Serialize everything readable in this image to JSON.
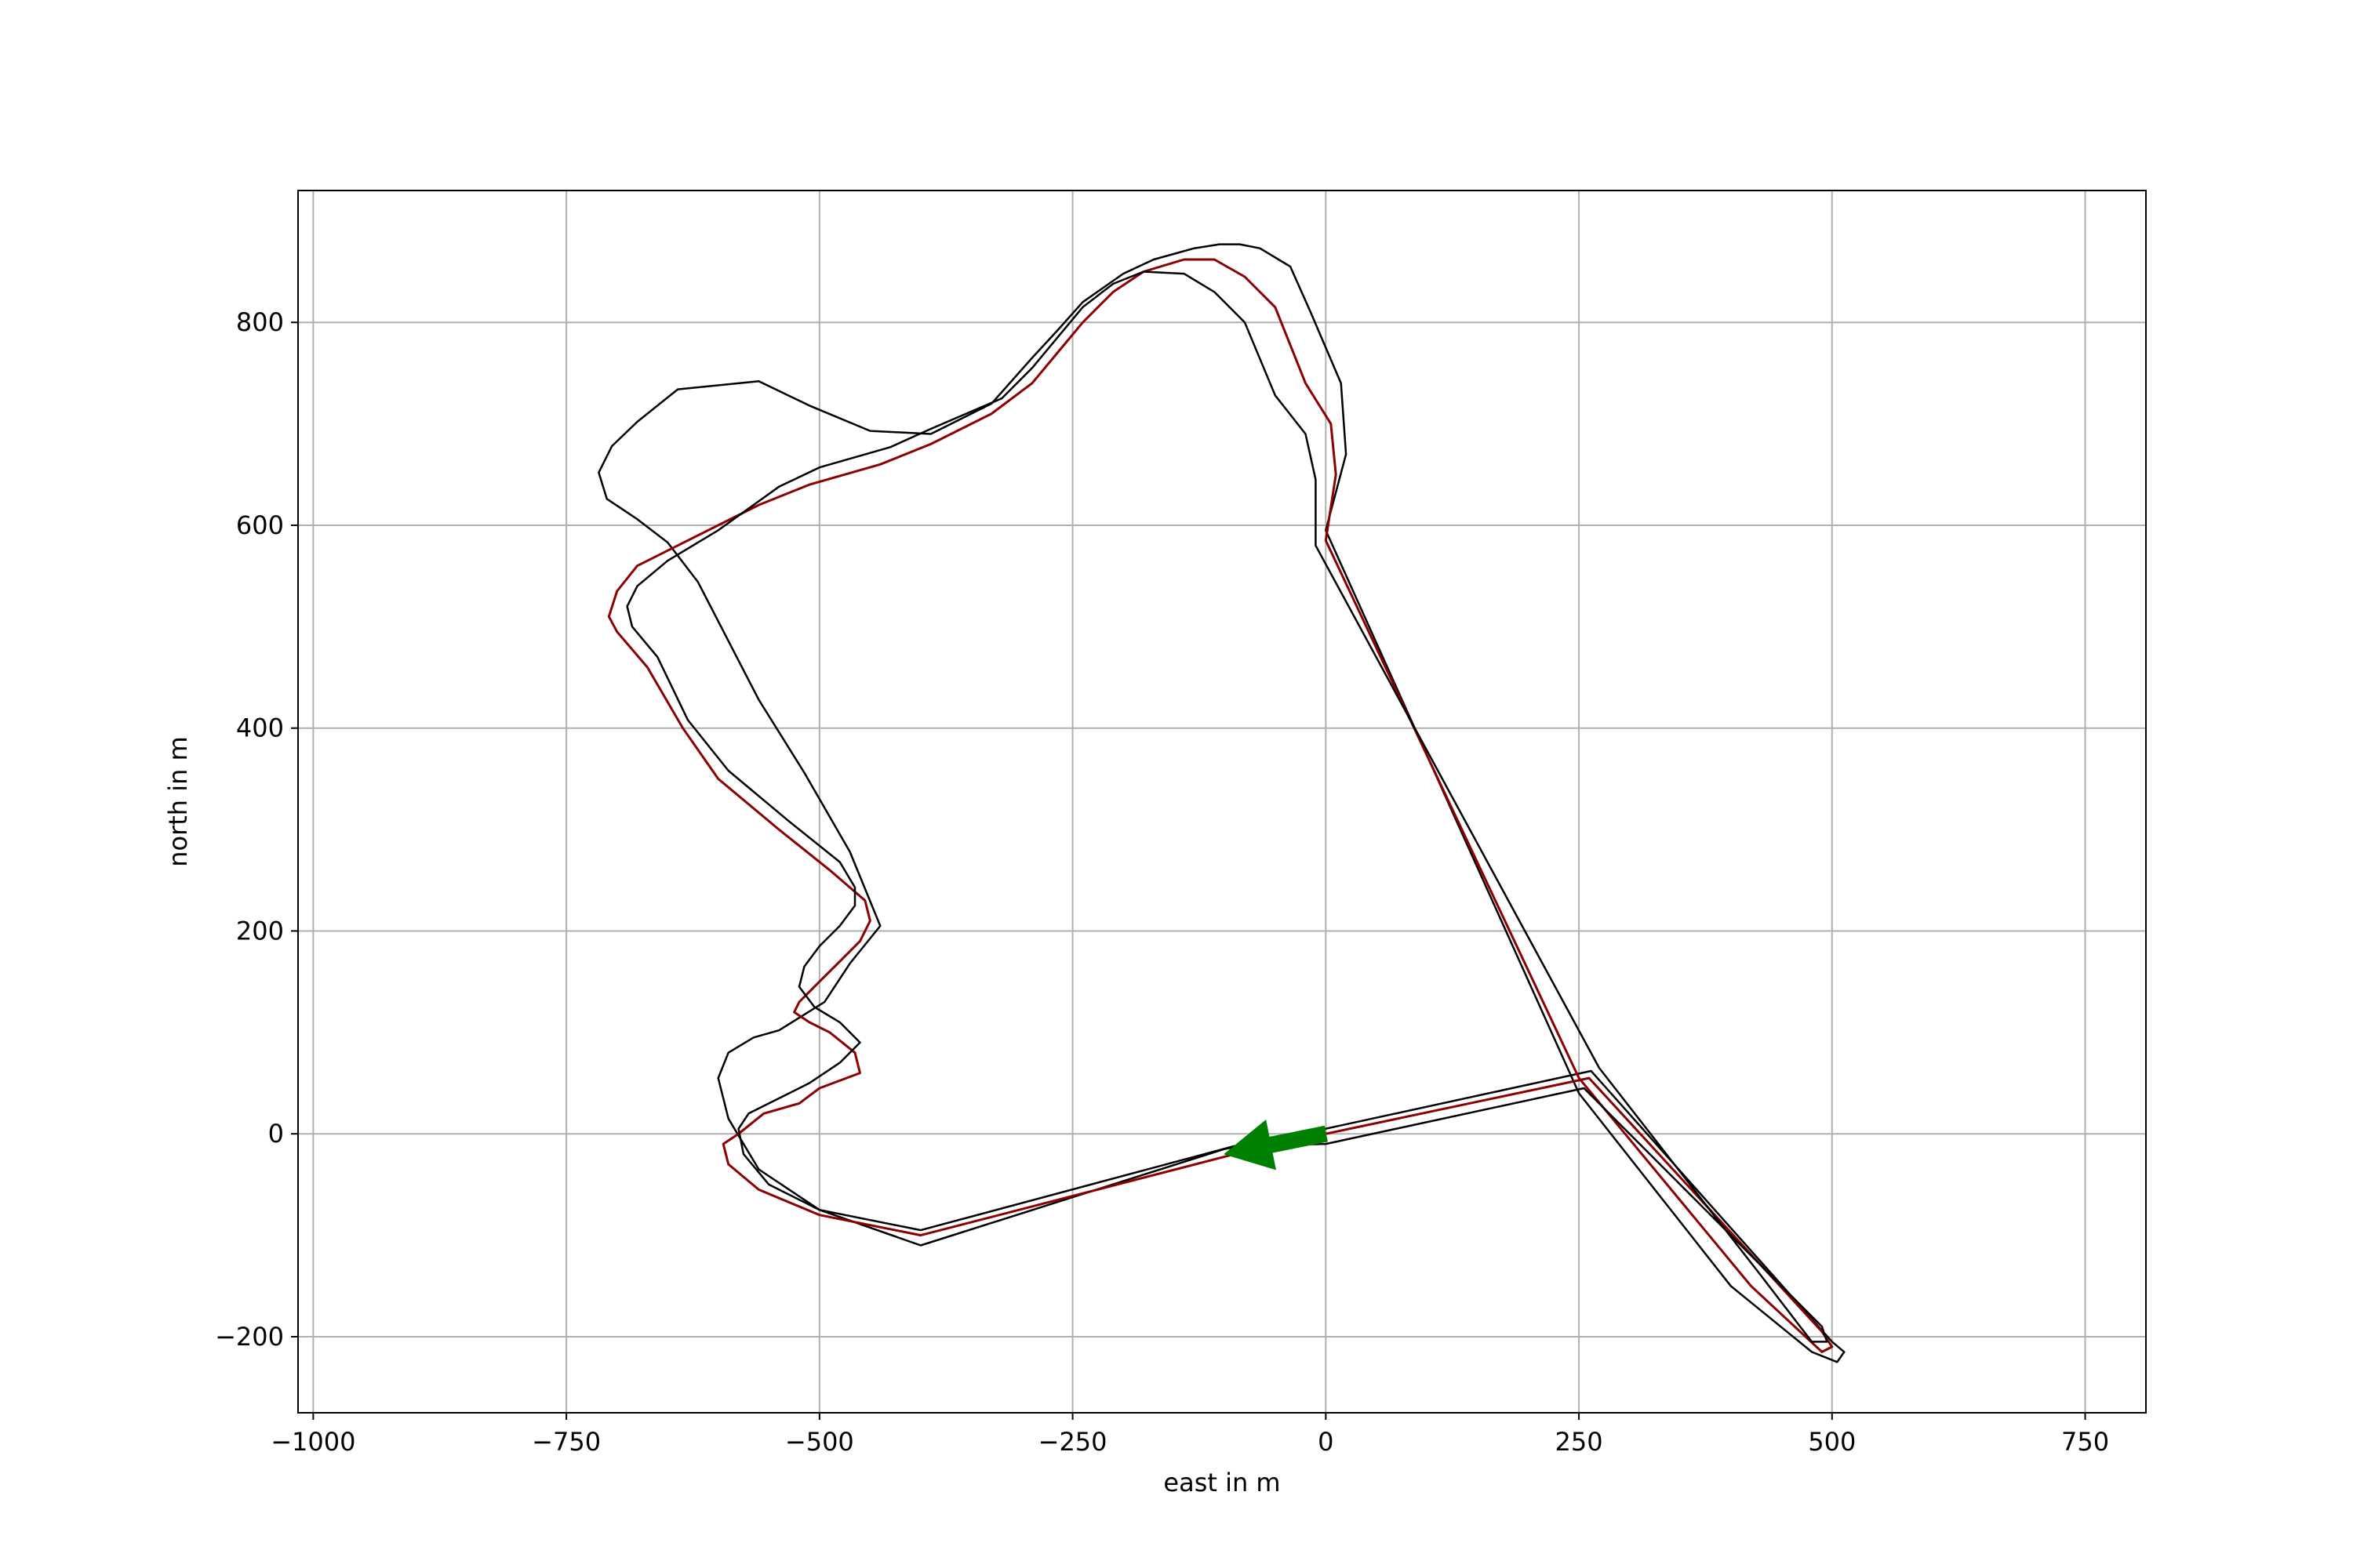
{
  "chart_data": {
    "type": "line",
    "title": "",
    "xlabel": "east in m",
    "ylabel": "north in m",
    "xlim": [
      -1015,
      810
    ],
    "ylim": [
      -275,
      930
    ],
    "grid": true,
    "xticks": [
      -1000,
      -750,
      -500,
      -250,
      0,
      250,
      500,
      750
    ],
    "yticks": [
      -200,
      0,
      200,
      400,
      600,
      800
    ],
    "xtick_labels": [
      "−1000",
      "−750",
      "−500",
      "−250",
      "0",
      "250",
      "500",
      "750"
    ],
    "ytick_labels": [
      "−200",
      "0",
      "200",
      "400",
      "600",
      "800"
    ],
    "colors": {
      "boundary": "#000000",
      "racing_line": "#8b0000",
      "arrow": "#007f00",
      "grid": "#b0b0b0"
    },
    "series": [
      {
        "role": "outer-boundary",
        "x": [
          0,
          262,
          500,
          512,
          505,
          480,
          400,
          250,
          0,
          20,
          15,
          -15,
          -35,
          -65,
          -85,
          -105,
          -130,
          -170,
          -200,
          -240,
          -265,
          -290,
          -330,
          -390,
          -450,
          -510,
          -560,
          -640,
          -680,
          -705,
          -718,
          -710,
          -680,
          -650,
          -620,
          -560,
          -515,
          -470,
          -440,
          -470,
          -495,
          -540,
          -565,
          -590,
          -600,
          -590,
          -560,
          -500,
          -400,
          -100,
          0
        ],
        "y": [
          5,
          62,
          -205,
          -215,
          -225,
          -215,
          -150,
          40,
          595,
          670,
          740,
          810,
          855,
          873,
          877,
          877,
          873,
          862,
          848,
          820,
          792,
          765,
          720,
          690,
          693,
          718,
          742,
          734,
          702,
          678,
          652,
          626,
          606,
          583,
          544,
          428,
          356,
          278,
          205,
          168,
          130,
          102,
          95,
          80,
          55,
          15,
          -35,
          -75,
          -110,
          -15,
          5
        ]
      },
      {
        "role": "racing-line",
        "x": [
          0,
          260,
          490,
          500,
          490,
          420,
          250,
          0,
          10,
          5,
          -20,
          -50,
          -80,
          -110,
          -140,
          -180,
          -210,
          -240,
          -265,
          -290,
          -330,
          -390,
          -440,
          -510,
          -560,
          -640,
          -680,
          -700,
          -708,
          -700,
          -670,
          -635,
          -600,
          -540,
          -490,
          -455,
          -450,
          -460,
          -480,
          -500,
          -520,
          -525,
          -510,
          -490,
          -465,
          -460,
          -500,
          -520,
          -555,
          -580,
          -595,
          -590,
          -560,
          -500,
          -400,
          -90,
          0
        ],
        "y": [
          0,
          55,
          -195,
          -210,
          -215,
          -150,
          55,
          585,
          650,
          700,
          740,
          815,
          845,
          862,
          862,
          850,
          830,
          800,
          770,
          740,
          710,
          680,
          660,
          640,
          620,
          580,
          560,
          535,
          510,
          495,
          460,
          400,
          350,
          300,
          260,
          230,
          210,
          190,
          170,
          150,
          130,
          120,
          110,
          100,
          80,
          60,
          45,
          30,
          20,
          0,
          -10,
          -30,
          -55,
          -80,
          -100,
          -20,
          0
        ]
      },
      {
        "role": "inner-boundary",
        "x": [
          0,
          255,
          490,
          495,
          480,
          430,
          270,
          -10,
          -10,
          -20,
          -50,
          -80,
          -110,
          -140,
          -180,
          -210,
          -240,
          -265,
          -290,
          -320,
          -390,
          -430,
          -500,
          -540,
          -600,
          -650,
          -680,
          -690,
          -685,
          -660,
          -630,
          -590,
          -530,
          -480,
          -465,
          -465,
          -480,
          -500,
          -515,
          -520,
          -505,
          -480,
          -460,
          -480,
          -510,
          -540,
          -570,
          -580,
          -575,
          -550,
          -500,
          -400,
          -90,
          0
        ],
        "y": [
          -10,
          45,
          -190,
          -205,
          -205,
          -140,
          65,
          580,
          645,
          690,
          728,
          800,
          830,
          848,
          850,
          838,
          815,
          785,
          755,
          725,
          695,
          677,
          657,
          638,
          595,
          565,
          540,
          520,
          500,
          470,
          408,
          358,
          308,
          268,
          243,
          225,
          205,
          185,
          165,
          145,
          125,
          110,
          90,
          70,
          50,
          35,
          20,
          5,
          -20,
          -50,
          -75,
          -95,
          -12,
          -10
        ]
      }
    ],
    "annotations": [
      {
        "type": "arrow",
        "from": [
          0,
          0
        ],
        "to": [
          -100,
          -20
        ],
        "color": "green"
      }
    ]
  }
}
